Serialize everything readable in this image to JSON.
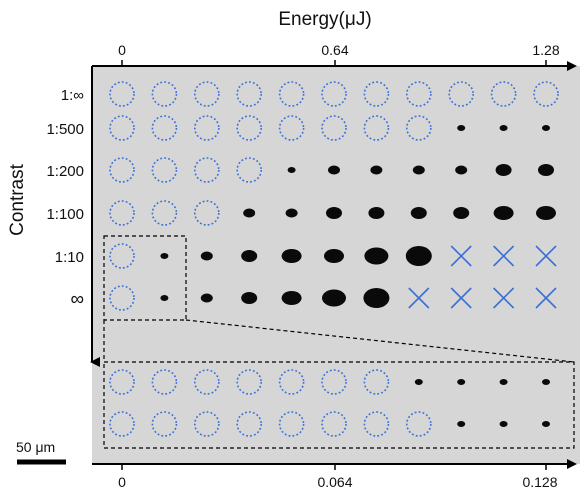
{
  "figure": {
    "top_axis": {
      "title": "Energy(μJ)",
      "ticks": [
        "0",
        "0.64",
        "1.28"
      ]
    },
    "bottom_axis": {
      "ticks": [
        "0",
        "0.064",
        "0.128"
      ]
    },
    "left_axis": {
      "title": "Contrast",
      "rows": [
        "1:∞",
        "1:500",
        "1:200",
        "1:100",
        "1:10",
        "∞"
      ]
    },
    "scale_bar": {
      "label": "50 μm"
    },
    "colors": {
      "background": "#ffffff",
      "panel": "#d9d9d9",
      "marker_blue": "#3b6fd6",
      "spot": "#0a0a0a",
      "axis": "#000000"
    },
    "grid": {
      "columns": 11,
      "legend": "o = no damage (blue dotted circle), x = not tested (blue cross), dot = damage spot",
      "main_rows": [
        {
          "contrast": "1:∞",
          "marks": [
            "o",
            "o",
            "o",
            "o",
            "o",
            "o",
            "o",
            "o",
            "o",
            "o",
            "o"
          ]
        },
        {
          "contrast": "1:500",
          "marks": [
            "o",
            "o",
            "o",
            "o",
            "o",
            "o",
            "o",
            "o",
            "d1",
            "d1",
            "d1"
          ]
        },
        {
          "contrast": "1:200",
          "marks": [
            "o",
            "o",
            "o",
            "o",
            "d1",
            "d2",
            "d2",
            "d2",
            "d2",
            "d3",
            "d3"
          ]
        },
        {
          "contrast": "1:100",
          "marks": [
            "o",
            "o",
            "o",
            "d2",
            "d2",
            "d3",
            "d3",
            "d3",
            "d3",
            "d4",
            "d4"
          ]
        },
        {
          "contrast": "1:10",
          "marks": [
            "o",
            "d1",
            "d2",
            "d3",
            "d4",
            "d4",
            "d5",
            "d6",
            "x",
            "x",
            "x"
          ]
        },
        {
          "contrast": "∞",
          "marks": [
            "o",
            "d1",
            "d2",
            "d3",
            "d4",
            "d5",
            "d6",
            "x",
            "x",
            "x",
            "x"
          ]
        }
      ],
      "zoom_rows": [
        {
          "marks": [
            "o",
            "o",
            "o",
            "o",
            "o",
            "o",
            "o",
            "d1",
            "d1",
            "d1",
            "d1"
          ]
        },
        {
          "marks": [
            "o",
            "o",
            "o",
            "o",
            "o",
            "o",
            "o",
            "o",
            "d1",
            "d1",
            "d1"
          ]
        }
      ]
    }
  }
}
